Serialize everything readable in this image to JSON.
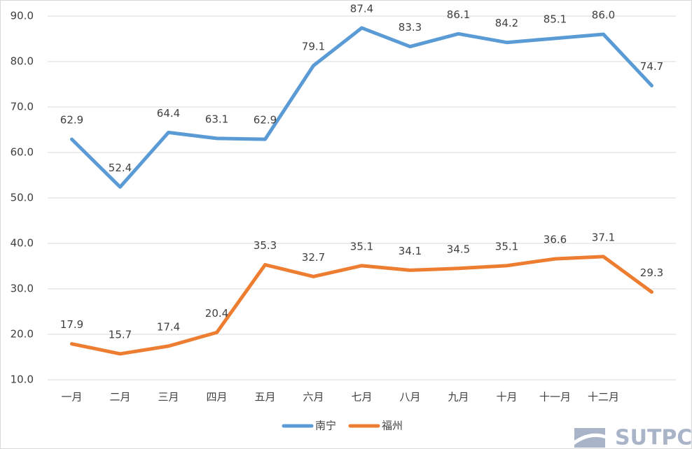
{
  "chart_data": {
    "type": "line",
    "categories": [
      "一月",
      "二月",
      "三月",
      "四月",
      "五月",
      "六月",
      "七月",
      "八月",
      "九月",
      "十月",
      "十一月",
      "十二月",
      null
    ],
    "series": [
      {
        "name": "南宁",
        "color": "#5b9bd5",
        "values": [
          62.9,
          52.4,
          64.4,
          63.1,
          62.9,
          79.1,
          87.4,
          83.3,
          86.1,
          84.2,
          85.1,
          86.0,
          74.7
        ],
        "value_labels": [
          "62.9",
          "52.4",
          "64.4",
          "63.1",
          "62.9",
          "79.1",
          "87.4",
          "83.3",
          "86.1",
          "84.2",
          "85.1",
          "86.0",
          "74.7"
        ]
      },
      {
        "name": "福州",
        "color": "#ed7d31",
        "values": [
          17.9,
          15.7,
          17.4,
          20.4,
          35.3,
          32.7,
          35.1,
          34.1,
          34.5,
          35.1,
          36.6,
          37.1,
          29.3
        ],
        "value_labels": [
          "17.9",
          "15.7",
          "17.4",
          "20.4",
          "35.3",
          "32.7",
          "35.1",
          "34.1",
          "34.5",
          "35.1",
          "36.6",
          "37.1",
          "29.3"
        ]
      }
    ],
    "ylim": [
      10,
      90
    ],
    "yticks": [
      {
        "value": 10,
        "label": "10.0"
      },
      {
        "value": 20,
        "label": "20.0"
      },
      {
        "value": 30,
        "label": "30.0"
      },
      {
        "value": 40,
        "label": "40.0"
      },
      {
        "value": 50,
        "label": "50.0"
      },
      {
        "value": 60,
        "label": "60.0"
      },
      {
        "value": 70,
        "label": "70.0"
      },
      {
        "value": 80,
        "label": "80.0"
      },
      {
        "value": 90,
        "label": "90.0"
      }
    ],
    "grid": true,
    "legend": "bottom"
  },
  "watermark": "SUTPC"
}
